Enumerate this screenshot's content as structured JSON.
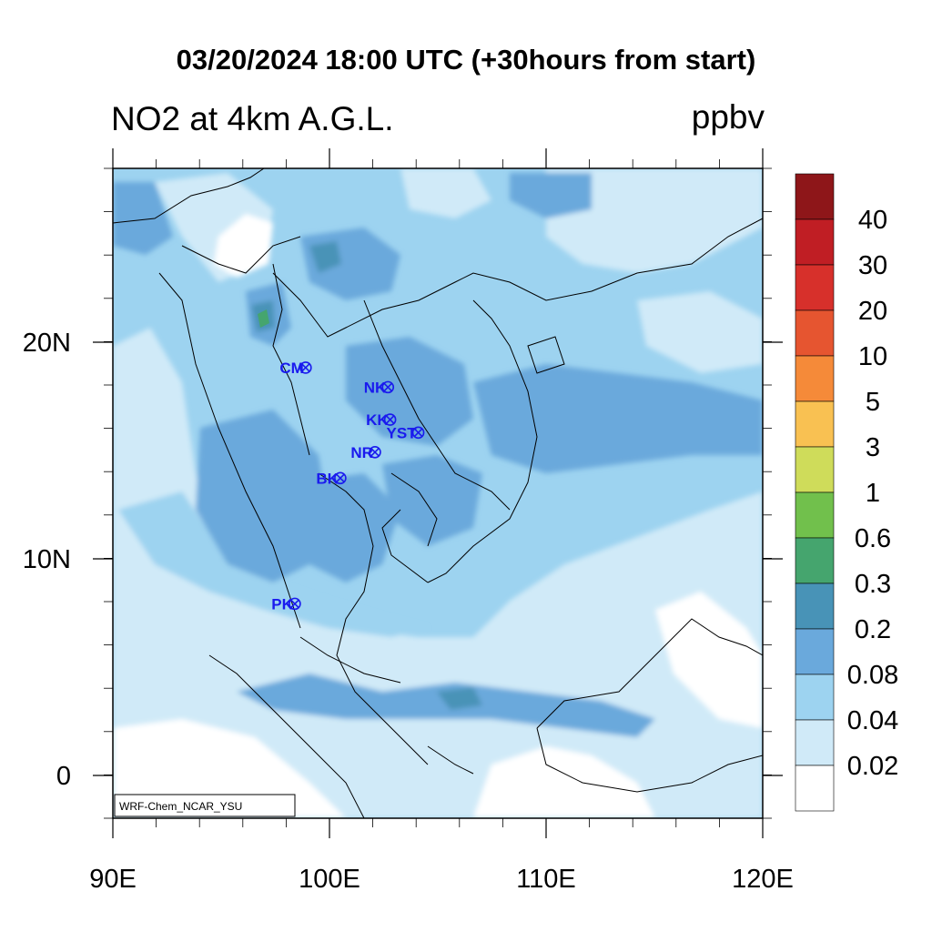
{
  "title": "03/20/2024 18:00 UTC (+30hours from start)",
  "subtitle": "NO2 at 4km A.G.L.",
  "units": "ppbv",
  "credit": "WRF-Chem_NCAR_YSU",
  "map": {
    "lon_range": [
      90,
      120
    ],
    "lat_range": [
      -2,
      28
    ],
    "x_ticks": [
      "90E",
      "100E",
      "110E",
      "120E"
    ],
    "y_ticks": [
      "0",
      "10N",
      "20N"
    ]
  },
  "colorbar": {
    "labels": [
      "0.02",
      "0.04",
      "0.08",
      "0.2",
      "0.3",
      "0.6",
      "1",
      "3",
      "5",
      "10",
      "20",
      "30",
      "40"
    ],
    "colors": [
      "#ffffff",
      "#d0eaf8",
      "#9dd3f0",
      "#6aa9dc",
      "#4893b7",
      "#45a56e",
      "#71c04c",
      "#cfdc5a",
      "#f9c152",
      "#f58a39",
      "#e65530",
      "#d7302b",
      "#c01e24",
      "#8e1619"
    ]
  },
  "stations": [
    {
      "code": "CM",
      "lon": 98.9,
      "lat": 18.8
    },
    {
      "code": "NK",
      "lon": 102.7,
      "lat": 17.9
    },
    {
      "code": "KK",
      "lon": 102.8,
      "lat": 16.4
    },
    {
      "code": "YST",
      "lon": 104.1,
      "lat": 15.8
    },
    {
      "code": "NR",
      "lon": 102.1,
      "lat": 14.9
    },
    {
      "code": "BK",
      "lon": 100.5,
      "lat": 13.7
    },
    {
      "code": "PK",
      "lon": 98.4,
      "lat": 7.9
    }
  ]
}
